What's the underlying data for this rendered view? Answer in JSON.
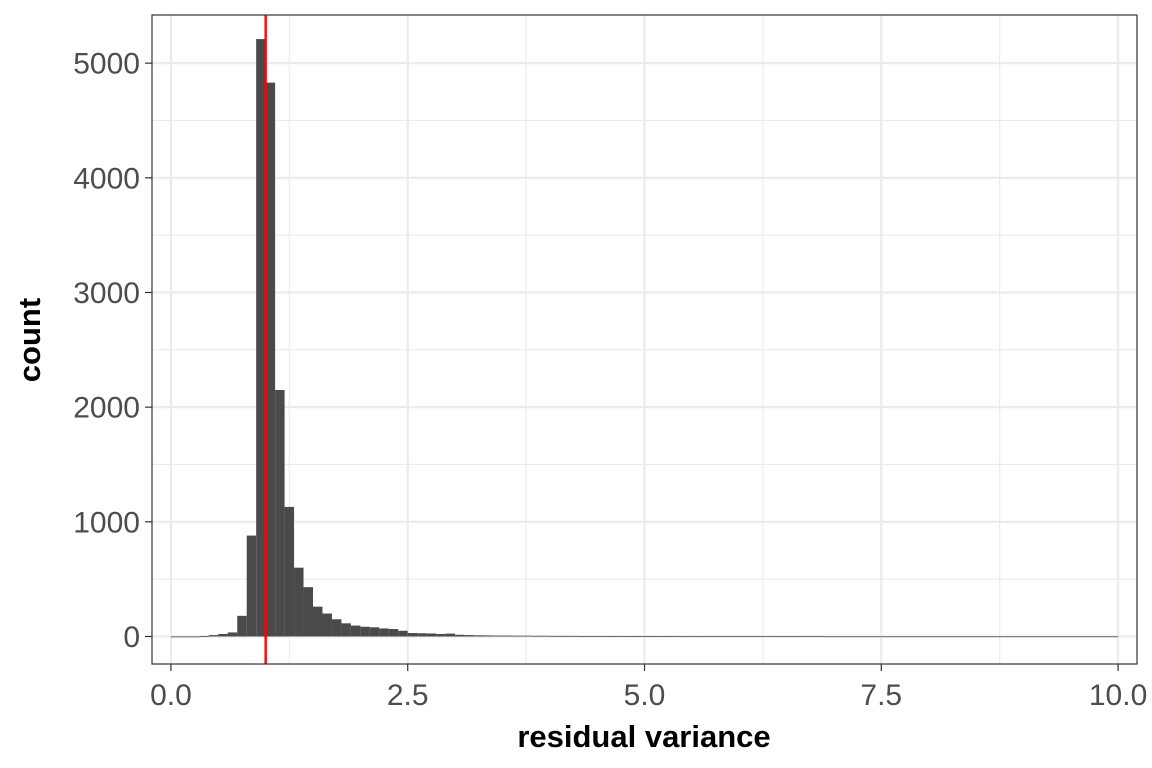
{
  "chart_data": {
    "type": "histogram",
    "title": "",
    "xlabel": "residual variance",
    "ylabel": "count",
    "xlim": [
      -0.2,
      10.2
    ],
    "ylim": [
      -240,
      5420
    ],
    "x_ticks": [
      0.0,
      2.5,
      5.0,
      7.5,
      10.0
    ],
    "x_tick_labels": [
      "0.0",
      "2.5",
      "5.0",
      "7.5",
      "10.0"
    ],
    "x_minor_ticks": [
      1.25,
      3.75,
      6.25,
      8.75
    ],
    "y_ticks": [
      0,
      1000,
      2000,
      3000,
      4000,
      5000
    ],
    "y_tick_labels": [
      "0",
      "1000",
      "2000",
      "3000",
      "4000",
      "5000"
    ],
    "y_minor_ticks": [
      500,
      1500,
      2500,
      3500,
      4500
    ],
    "grid": true,
    "bin_width": 0.1,
    "bin_start": 0.0,
    "counts": [
      0,
      0,
      0,
      3,
      12,
      22,
      35,
      180,
      880,
      5210,
      4830,
      2150,
      1130,
      600,
      430,
      260,
      200,
      150,
      115,
      95,
      85,
      80,
      70,
      65,
      50,
      30,
      28,
      26,
      22,
      25,
      15,
      12,
      10,
      9,
      8,
      8,
      7,
      7,
      6,
      6,
      5,
      5,
      5,
      4,
      4,
      4,
      4,
      3,
      3,
      3,
      3,
      3,
      3,
      3,
      2,
      2,
      2,
      2,
      2,
      2,
      2,
      2,
      2,
      2,
      2,
      2,
      2,
      2,
      2,
      1,
      1,
      1,
      1,
      1,
      1,
      1,
      1,
      1,
      1,
      1,
      1,
      1,
      1,
      1,
      1,
      1,
      1,
      1,
      1,
      1,
      1,
      1,
      1,
      1,
      1,
      1,
      1,
      1,
      1,
      1
    ],
    "vline": {
      "x": 1.0,
      "color": "#ff0000"
    },
    "colors": {
      "bar": "#4a4a4a",
      "grid": "#ebebeb",
      "panel_border": "#333333",
      "tick": "#333333"
    }
  }
}
